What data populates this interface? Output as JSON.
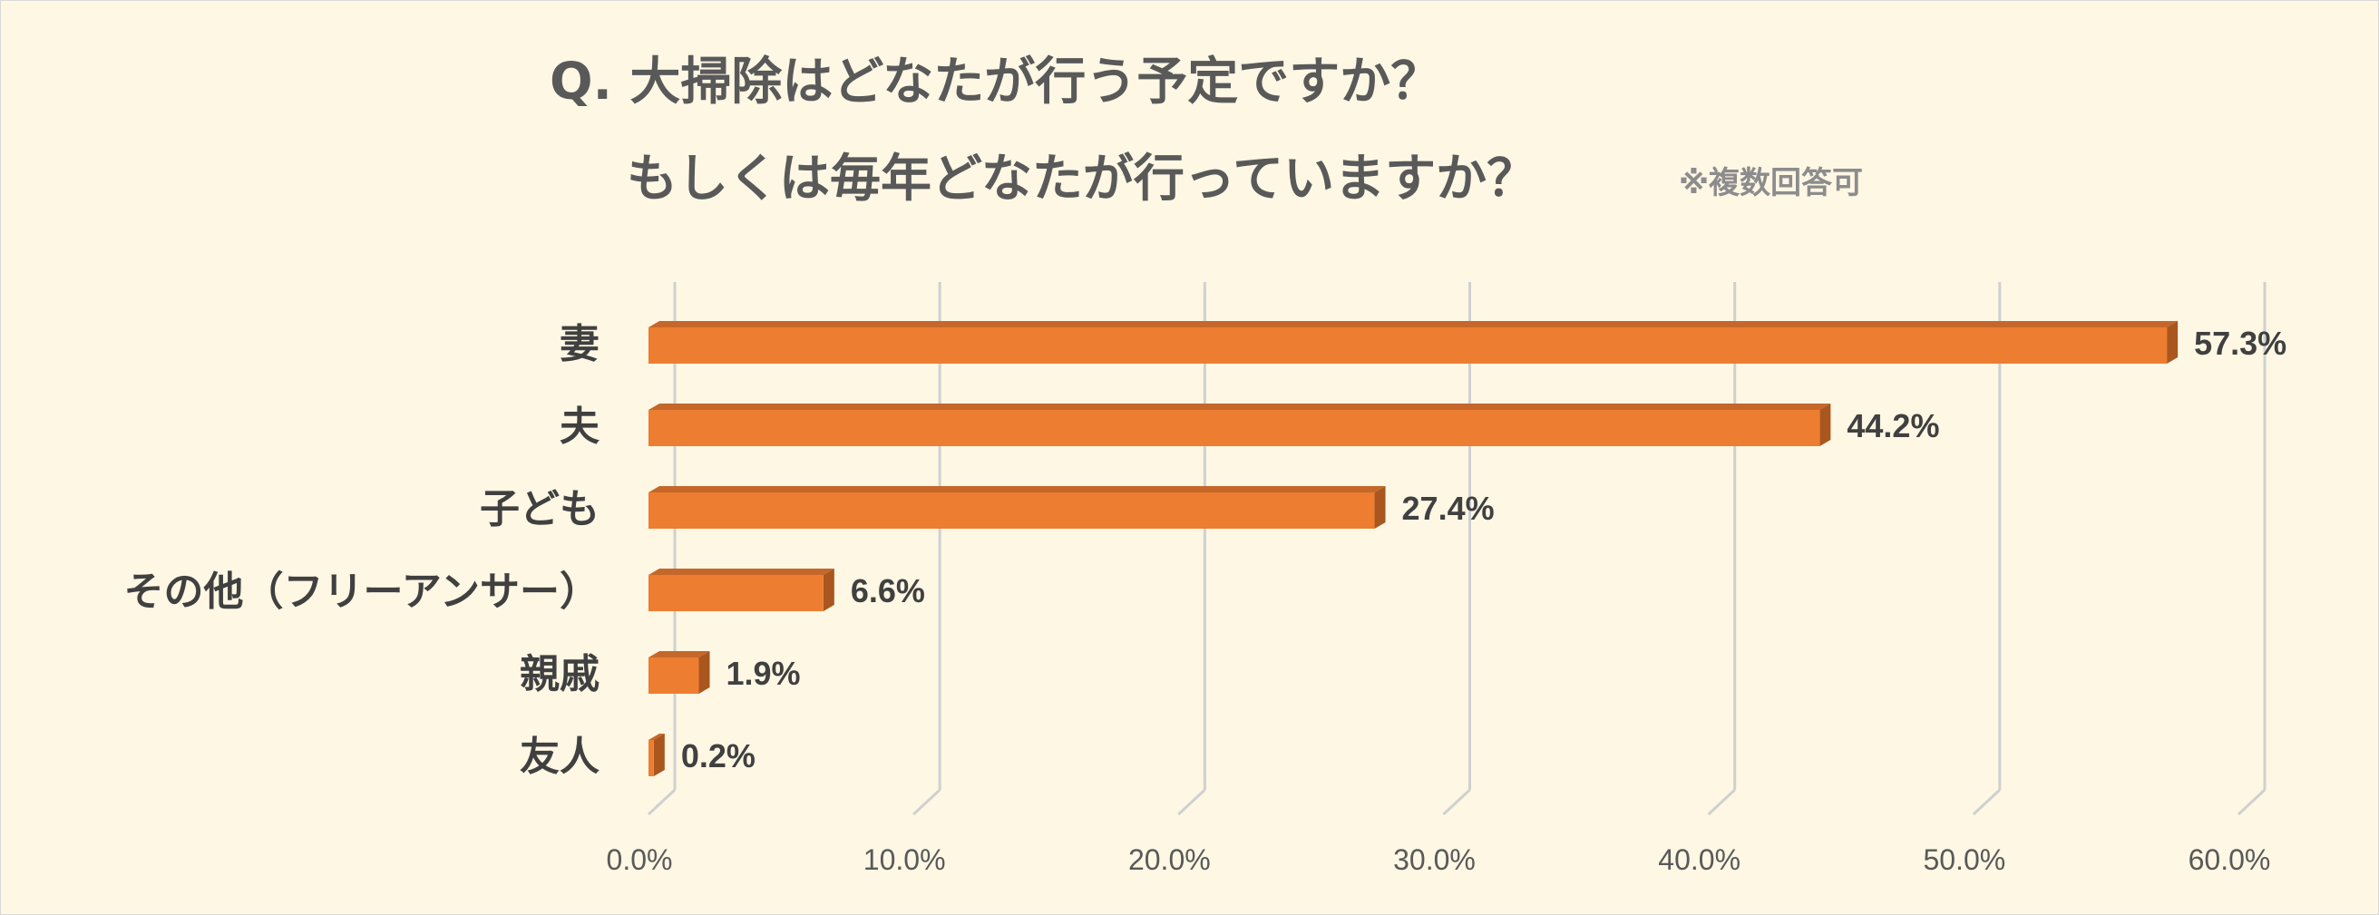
{
  "chart_data": {
    "type": "bar",
    "orientation": "horizontal",
    "title_line1": "Q. 大掃除はどなたが行う予定ですか？",
    "title_line2": "もしくは毎年どなたが行っていますか？",
    "note": "※複数回答可",
    "categories": [
      "妻",
      "夫",
      "子ども",
      "その他（フリーアンサー）",
      "親戚",
      "友人"
    ],
    "values": [
      57.3,
      44.2,
      27.4,
      6.6,
      1.9,
      0.2
    ],
    "value_labels": [
      "57.3%",
      "44.2%",
      "27.4%",
      "6.6%",
      "1.9%",
      "0.2%"
    ],
    "xlim": [
      0,
      60
    ],
    "x_ticks": [
      "0.0%",
      "10.0%",
      "20.0%",
      "30.0%",
      "40.0%",
      "50.0%",
      "60.0%"
    ],
    "grid": true,
    "legend": "none",
    "colors": {
      "background": "#fdf7e4",
      "bar_front": "#ed7d31",
      "bar_top": "#c5672a",
      "bar_side": "#a9561f",
      "grid": "#d0d0d0"
    }
  }
}
